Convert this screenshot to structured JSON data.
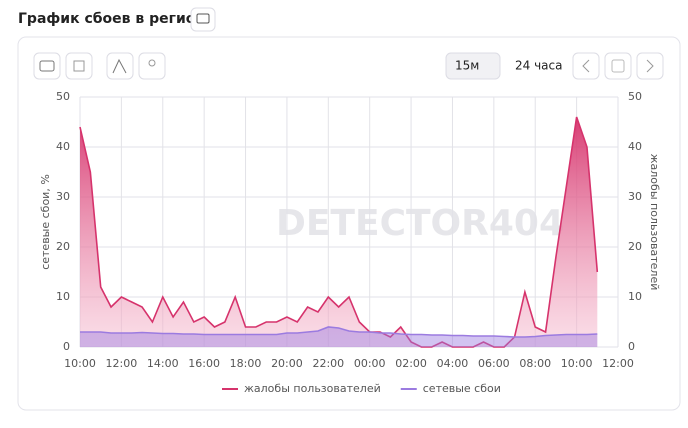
{
  "header": {
    "title": "График сбоев в регионе"
  },
  "controls": {
    "interval": "15м",
    "range": "24 часа"
  },
  "watermark": "DETECTOR404",
  "chart_data": {
    "type": "line",
    "y_label": "сетевые сбои, %",
    "y2_label": "жалобы пользователей",
    "categories": [
      "10:00",
      null,
      null,
      null,
      "12:00",
      null,
      null,
      null,
      "14:00",
      null,
      null,
      null,
      "16:00",
      null,
      null,
      null,
      "18:00",
      null,
      null,
      null,
      "20:00",
      null,
      null,
      null,
      "22:00",
      null,
      null,
      null,
      "00:00",
      null,
      null,
      null,
      "02:00",
      null,
      null,
      null,
      "04:00",
      null,
      null,
      null,
      "06:00",
      null,
      null,
      null,
      "08:00",
      null,
      null,
      null,
      "10:00",
      null,
      null,
      null,
      "12:00"
    ],
    "series": [
      {
        "name": "жалобы пользователей",
        "color": "#d6336c",
        "axis": "y2",
        "values": [
          44,
          35,
          12,
          8,
          10,
          9,
          8,
          5,
          10,
          6,
          9,
          5,
          6,
          4,
          5,
          10,
          4,
          4,
          5,
          5,
          6,
          5,
          8,
          7,
          10,
          8,
          10,
          5,
          3,
          3,
          2,
          4,
          1,
          0,
          0,
          1,
          0,
          0,
          0,
          1,
          0,
          0,
          2,
          11,
          4,
          3,
          18,
          32,
          46,
          40,
          15,
          null,
          null
        ]
      },
      {
        "name": "сетевые сбои",
        "color": "#9b7be0",
        "values": [
          3,
          3,
          3,
          2.8,
          2.8,
          2.8,
          2.9,
          2.8,
          2.7,
          2.7,
          2.6,
          2.6,
          2.5,
          2.5,
          2.5,
          2.5,
          2.5,
          2.5,
          2.5,
          2.5,
          2.8,
          2.8,
          3,
          3.2,
          4,
          3.8,
          3.2,
          3,
          3,
          2.8,
          2.8,
          2.6,
          2.5,
          2.5,
          2.4,
          2.4,
          2.3,
          2.3,
          2.2,
          2.2,
          2.2,
          2.1,
          2,
          2,
          2.1,
          2.3,
          2.4,
          2.5,
          2.5,
          2.5,
          2.6,
          null,
          null
        ]
      }
    ],
    "ylim": [
      0,
      50
    ],
    "yticks": [
      0,
      10,
      20,
      30,
      40,
      50
    ],
    "y2lim": [
      0,
      50
    ],
    "y2ticks": [
      0,
      10,
      20,
      30,
      40,
      50
    ],
    "grid": true,
    "legend": "bottom"
  }
}
